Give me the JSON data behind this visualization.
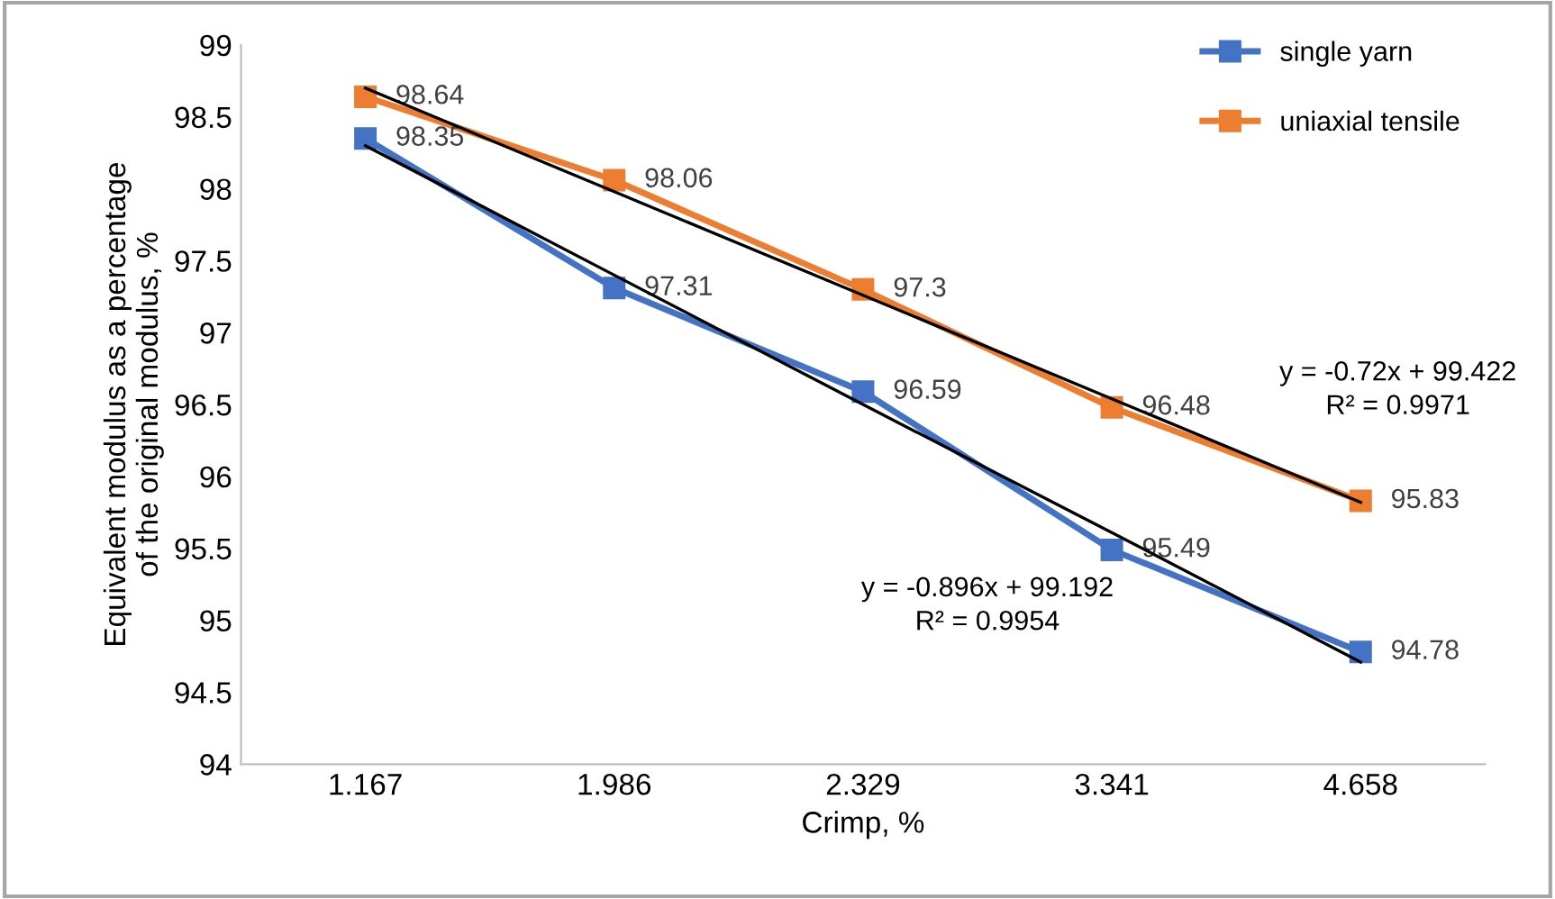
{
  "chart_data": {
    "type": "line",
    "xlabel": "Crimp, %",
    "ylabel": "Equivalent modulus as a percentage\nof the original modulus, %",
    "categories": [
      "1.167",
      "1.986",
      "2.329",
      "3.341",
      "4.658"
    ],
    "series": [
      {
        "name": "single yarn",
        "color": "#4472c4",
        "marker": "square",
        "values": [
          98.35,
          97.31,
          96.59,
          95.49,
          94.78
        ],
        "value_labels": [
          "98.35",
          "97.31",
          "96.59",
          "95.49",
          "94.78"
        ]
      },
      {
        "name": "uniaxial tensile",
        "color": "#ed7d31",
        "marker": "square",
        "values": [
          98.64,
          98.06,
          97.3,
          96.48,
          95.83
        ],
        "value_labels": [
          "98.64",
          "98.06",
          "97.3",
          "96.48",
          "95.83"
        ]
      },
      {
        "type": "line",
        "color": "#000000",
        "marker": "none",
        "values": [
          98.3,
          97.4,
          96.5,
          95.61,
          94.71
        ]
      },
      {
        "type": "line",
        "color": "#000000",
        "marker": "none",
        "values": [
          98.7,
          97.98,
          97.26,
          96.54,
          95.82
        ]
      }
    ],
    "ylim": [
      94,
      99
    ],
    "yticks": [
      94,
      94.5,
      95,
      95.5,
      96,
      96.5,
      97,
      97.5,
      98,
      98.5,
      99
    ],
    "grid": false,
    "legend": "top right",
    "line_style": "solid",
    "annotations": [
      "y = -0.72x + 99.422\nR² = 0.9971",
      "y = -0.896x + 99.192\nR² = 0.9954"
    ]
  }
}
